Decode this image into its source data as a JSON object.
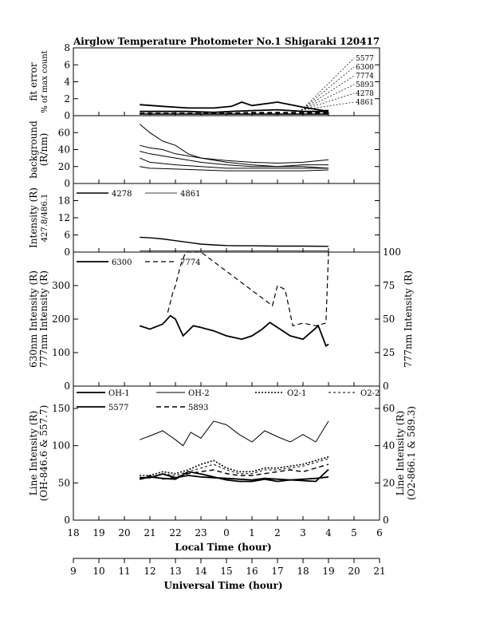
{
  "chart_data": {
    "type": "line",
    "title": "Airglow Temperature Photometer No.1   Shigaraki   120417",
    "xlabel": "Local Time (hour)",
    "xlabel2": "Universal Time (hour)",
    "x_ticks_lt": [
      "18",
      "19",
      "20",
      "21",
      "22",
      "23",
      "0",
      "1",
      "2",
      "3",
      "4",
      "5",
      "6"
    ],
    "x_ticks_ut": [
      "9",
      "10",
      "11",
      "12",
      "13",
      "14",
      "15",
      "16",
      "17",
      "18",
      "19",
      "20",
      "21"
    ],
    "xlim_lt": [
      18,
      30
    ],
    "panels": [
      {
        "id": "fit_error",
        "ylabel": "fit error",
        "ylabel2": "% of max count",
        "ylim": [
          0,
          8
        ],
        "yticks": [
          "0",
          "2",
          "4",
          "6",
          "8"
        ],
        "legend": [
          "5577",
          "6300",
          "7774",
          "5893",
          "4278",
          "4861"
        ],
        "series": [
          {
            "name": "5577",
            "x": [
              20.6,
              21.5,
              22.5,
              23.5,
              24.2,
              24.6,
              25.0,
              26.0,
              27.0,
              27.8,
              28.0
            ],
            "y": [
              1.3,
              1.1,
              0.9,
              0.9,
              1.1,
              1.6,
              1.2,
              1.6,
              1.0,
              0.6,
              0.6
            ]
          },
          {
            "name": "6300",
            "x": [
              20.6,
              21.5,
              22.5,
              23.5,
              24.2,
              25.0,
              26.0,
              27.0,
              28.0
            ],
            "y": [
              0.5,
              0.5,
              0.5,
              0.4,
              0.5,
              0.6,
              0.7,
              0.5,
              0.5
            ]
          },
          {
            "name": "7774",
            "x": [
              20.6,
              21.5,
              22.5,
              23.5,
              24.2,
              25.0,
              26.0,
              27.0,
              28.0
            ],
            "y": [
              0.3,
              0.3,
              0.3,
              0.3,
              0.3,
              0.4,
              0.4,
              0.4,
              0.4
            ]
          },
          {
            "name": "5893",
            "x": [
              20.6,
              21.5,
              22.5,
              23.5,
              24.2,
              25.0,
              26.0,
              27.0,
              28.0
            ],
            "y": [
              0.25,
              0.25,
              0.25,
              0.25,
              0.3,
              0.3,
              0.3,
              0.3,
              0.3
            ]
          },
          {
            "name": "4278",
            "x": [
              20.6,
              21.5,
              22.5,
              23.5,
              24.2,
              25.0,
              26.0,
              27.0,
              28.0
            ],
            "y": [
              0.2,
              0.2,
              0.2,
              0.2,
              0.2,
              0.2,
              0.2,
              0.2,
              0.2
            ]
          },
          {
            "name": "4861",
            "x": [
              20.6,
              21.5,
              22.5,
              23.5,
              24.2,
              25.0,
              26.0,
              27.0,
              28.0
            ],
            "y": [
              0.15,
              0.15,
              0.15,
              0.15,
              0.15,
              0.15,
              0.15,
              0.15,
              0.15
            ]
          }
        ]
      },
      {
        "id": "background",
        "ylabel": "background",
        "ylabel2": "(R/nm)",
        "ylim": [
          0,
          80
        ],
        "yticks": [
          "0",
          "20",
          "40",
          "60"
        ],
        "series": [
          {
            "name": "a",
            "x": [
              20.6,
              21.0,
              21.5,
              22.0,
              22.5,
              23.0,
              24.0,
              25.0,
              26.0,
              27.0,
              28.0
            ],
            "y": [
              70,
              60,
              50,
              45,
              35,
              30,
              25,
              22,
              20,
              20,
              18
            ]
          },
          {
            "name": "b",
            "x": [
              20.6,
              21.0,
              21.5,
              22.0,
              23.0,
              24.0,
              25.0,
              26.0,
              27.0,
              28.0
            ],
            "y": [
              45,
              42,
              40,
              35,
              30,
              27,
              25,
              24,
              25,
              28
            ]
          },
          {
            "name": "c",
            "x": [
              20.6,
              21.0,
              22.0,
              23.0,
              24.0,
              25.0,
              26.0,
              27.0,
              28.0
            ],
            "y": [
              38,
              35,
              30,
              25,
              22,
              20,
              20,
              22,
              22
            ]
          },
          {
            "name": "d",
            "x": [
              20.6,
              21.0,
              22.0,
              23.0,
              24.0,
              25.0,
              26.0,
              27.0,
              28.0
            ],
            "y": [
              30,
              25,
              22,
              20,
              18,
              18,
              18,
              18,
              18
            ]
          },
          {
            "name": "e",
            "x": [
              20.6,
              21.0,
              22.0,
              23.0,
              24.0,
              25.0,
              26.0,
              27.0,
              28.0
            ],
            "y": [
              20,
              18,
              17,
              16,
              15,
              15,
              15,
              15,
              16
            ]
          }
        ]
      },
      {
        "id": "h_intensity",
        "ylabel": "Intensity (R)",
        "ylabel2": "427.8/486.1",
        "ylim": [
          0,
          24
        ],
        "yticks": [
          "0",
          "6",
          "12",
          "18"
        ],
        "legend": [
          "4278",
          "4861"
        ],
        "series": [
          {
            "name": "4278",
            "x": [
              20.6,
              21.0,
              21.5,
              22.0,
              22.5,
              23.0,
              23.5,
              24.0,
              24.5,
              25.0,
              26.0,
              27.0,
              28.0
            ],
            "y": [
              5.2,
              5.0,
              4.6,
              4.0,
              3.4,
              2.8,
              2.5,
              2.3,
              2.2,
              2.2,
              2.1,
              2.1,
              2.0
            ]
          },
          {
            "name": "4861",
            "x": [
              20.6,
              22.0,
              24.0,
              26.0,
              28.0
            ],
            "y": [
              0.4,
              0.4,
              0.4,
              0.4,
              0.4
            ]
          }
        ]
      },
      {
        "id": "red_line",
        "ylabel": "630nm Intensity (R)",
        "ylabel2": "777nm Intensity (R)",
        "ylim": [
          0,
          400
        ],
        "ylim2": [
          0,
          100
        ],
        "yticks": [
          "0",
          "100",
          "200",
          "300"
        ],
        "yticks2": [
          "0",
          "25",
          "50",
          "75",
          "100"
        ],
        "legend": [
          "6300",
          "7774"
        ],
        "series": [
          {
            "name": "6300",
            "x": [
              20.6,
              21.0,
              21.5,
              21.8,
              22.0,
              22.3,
              22.7,
              23.0,
              23.5,
              24.0,
              24.3,
              24.6,
              25.0,
              25.4,
              25.7,
              26.0,
              26.5,
              27.0,
              27.3,
              27.6,
              27.9,
              28.0
            ],
            "y": [
              180,
              170,
              185,
              210,
              200,
              150,
              180,
              175,
              165,
              150,
              145,
              140,
              150,
              170,
              190,
              175,
              150,
              140,
              160,
              180,
              120,
              125
            ]
          },
          {
            "name": "7774",
            "x": [
              21.7,
              21.9,
              22.0,
              22.2,
              22.4,
              22.6,
              23.0,
              25.8,
              26.0,
              26.3,
              26.6,
              27.0,
              27.5,
              27.9,
              28.0
            ],
            "y": [
              55,
              70,
              75,
              90,
              100,
              100,
              100,
              60,
              75,
              72,
              45,
              47,
              45,
              47,
              100
            ]
          }
        ]
      },
      {
        "id": "line_intensity",
        "ylabel": "Line Intensity (R)",
        "ylabel2": "(OH-846.6 & 557.7)",
        "ylabel_r": "Line Intensity (R)",
        "ylabel_r2": "(O2-866.1 & 589.3)",
        "ylim": [
          0,
          180
        ],
        "ylim2": [
          0,
          72
        ],
        "yticks": [
          "0",
          "50",
          "100",
          "150"
        ],
        "yticks2": [
          "0",
          "20",
          "40",
          "60"
        ],
        "legend": [
          "OH-1",
          "OH-2",
          "O2-1",
          "O2-2",
          "5577",
          "5893"
        ],
        "series": [
          {
            "name": "OH-1",
            "x": [
              20.6,
              21.0,
              21.5,
              22.0,
              22.5,
              23.0,
              23.5,
              24.0,
              24.5,
              25.0,
              25.5,
              26.0,
              26.5,
              27.0,
              27.5,
              28.0
            ],
            "y": [
              57,
              57,
              62,
              57,
              60,
              58,
              57,
              56,
              55,
              54,
              56,
              55,
              54,
              55,
              56,
              58
            ]
          },
          {
            "name": "OH-2",
            "x": [
              20.6,
              21.0,
              21.5,
              22.0,
              22.3,
              22.6,
              23.0,
              23.5,
              24.0,
              24.5,
              25.0,
              25.5,
              26.0,
              26.5,
              27.0,
              27.5,
              28.0
            ],
            "y": [
              108,
              113,
              120,
              108,
              100,
              118,
              110,
              133,
              128,
              115,
              105,
              120,
              112,
              105,
              115,
              105,
              133
            ]
          },
          {
            "name": "O2-1",
            "x": [
              20.6,
              21.0,
              21.5,
              22.0,
              22.5,
              23.0,
              23.5,
              24.0,
              24.5,
              25.0,
              25.5,
              26.0,
              26.5,
              27.0,
              27.5,
              28.0
            ],
            "y": [
              24,
              24,
              26,
              25,
              27,
              30,
              32,
              28,
              26,
              26,
              28,
              28,
              29,
              30,
              32,
              34
            ]
          },
          {
            "name": "O2-2",
            "x": [
              20.6,
              21.0,
              21.5,
              22.0,
              22.5,
              23.0,
              23.5,
              24.0,
              24.5,
              25.0,
              25.5,
              26.0,
              26.5,
              27.0,
              27.5,
              28.0
            ],
            "y": [
              23,
              23,
              25,
              24,
              26,
              28,
              30,
              27,
              25,
              25,
              27,
              27,
              28,
              29,
              31,
              33
            ]
          },
          {
            "name": "5577",
            "x": [
              20.6,
              21.0,
              21.5,
              22.0,
              22.5,
              23.0,
              23.5,
              24.0,
              24.5,
              25.0,
              25.5,
              26.0,
              26.5,
              27.0,
              27.5,
              28.0
            ],
            "y": [
              55,
              58,
              56,
              55,
              65,
              62,
              58,
              54,
              52,
              52,
              55,
              52,
              54,
              53,
              52,
              68
            ]
          },
          {
            "name": "5893",
            "x": [
              20.6,
              21.0,
              21.5,
              22.0,
              22.5,
              23.0,
              23.5,
              24.0,
              24.5,
              25.0,
              25.5,
              26.0,
              26.5,
              27.0,
              27.5,
              28.0
            ],
            "y": [
              22,
              24,
              22,
              23,
              25,
              26,
              27,
              25,
              24,
              24,
              25,
              26,
              27,
              26,
              28,
              30
            ]
          }
        ]
      }
    ]
  }
}
